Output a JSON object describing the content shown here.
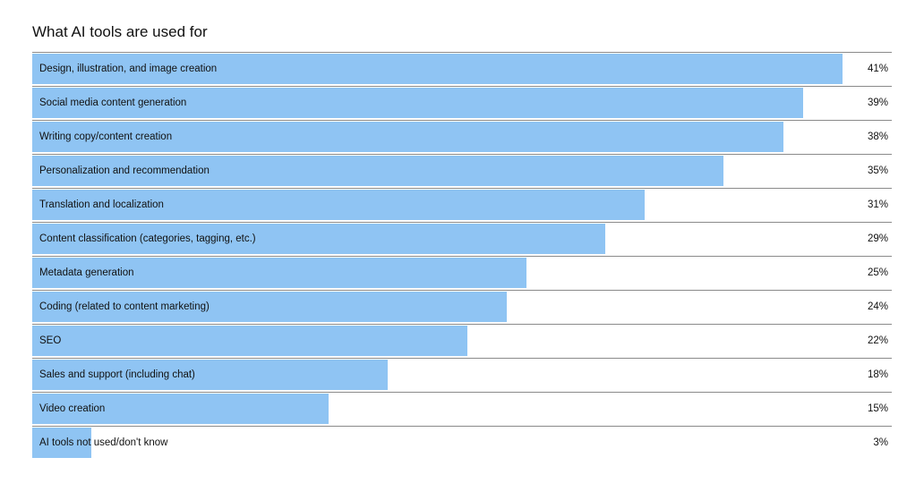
{
  "title": "What AI tools are used for",
  "chart_data": {
    "type": "bar",
    "orientation": "horizontal",
    "title": "What AI tools are used for",
    "categories": [
      "Design, illustration, and image creation",
      "Social media content generation",
      "Writing copy/content creation",
      "Personalization and recommendation",
      "Translation and localization",
      "Content classification (categories, tagging, etc.)",
      "Metadata generation",
      "Coding (related to content marketing)",
      "SEO",
      "Sales and support (including chat)",
      "Video creation",
      "AI tools not used/don't know"
    ],
    "values": [
      41,
      39,
      38,
      35,
      31,
      29,
      25,
      24,
      22,
      18,
      15,
      3
    ],
    "value_labels": [
      "41%",
      "39%",
      "38%",
      "35%",
      "31%",
      "29%",
      "25%",
      "24%",
      "22%",
      "18%",
      "15%",
      "3%"
    ],
    "xlim": [
      0,
      43.5
    ],
    "bar_color": "#8fc4f3",
    "grid": false,
    "legend": "none"
  }
}
